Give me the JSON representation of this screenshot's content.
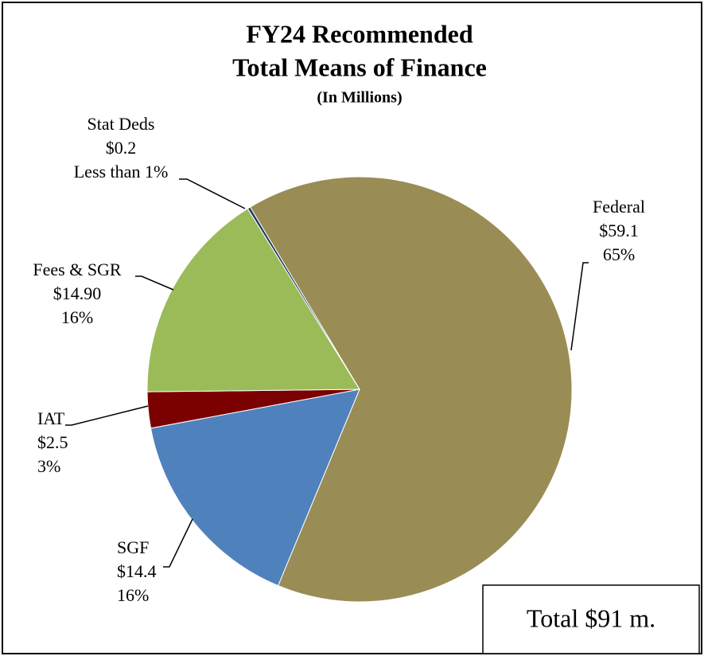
{
  "chart_data": {
    "type": "pie",
    "title_lines": [
      "FY24 Recommended",
      "Total Means of Finance"
    ],
    "subtitle": "(In Millions)",
    "categories": [
      "Federal",
      "SGF",
      "IAT",
      "Fees & SGR",
      "Stat Deds"
    ],
    "values": [
      59.1,
      14.4,
      2.5,
      14.9,
      0.2
    ],
    "value_labels": [
      "$59.1",
      "$14.4",
      "$2.5",
      "$14.90",
      "$0.2"
    ],
    "percent_labels": [
      "65%",
      "16%",
      "3%",
      "16%",
      "Less than 1%"
    ],
    "colors": [
      "#998d55",
      "#4f81bd",
      "#7b0000",
      "#9bbb59",
      "#1f3b5c"
    ],
    "annotation": "Total $91 m."
  }
}
